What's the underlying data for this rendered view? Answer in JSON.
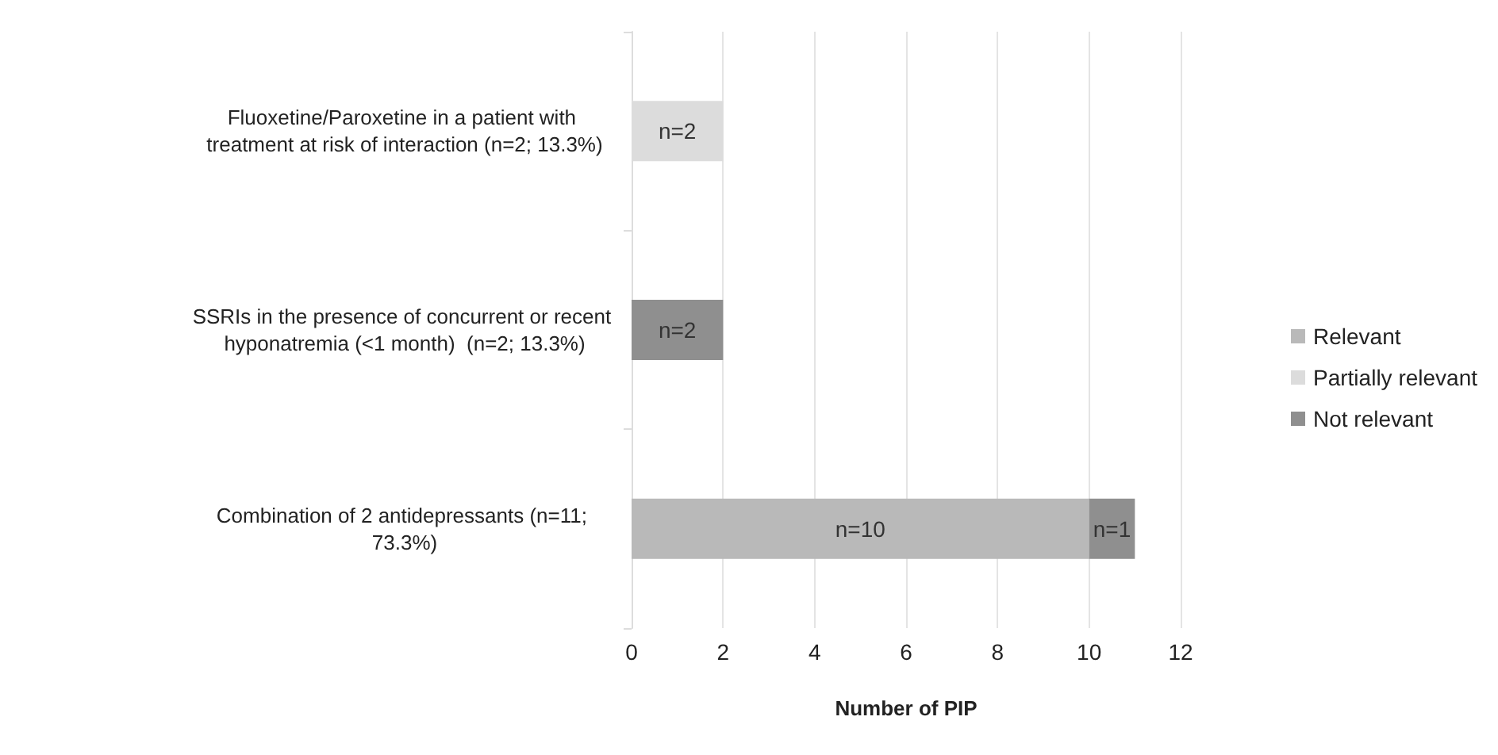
{
  "chart_data": {
    "type": "bar",
    "orientation": "horizontal",
    "stacked": true,
    "categories": [
      "Fluoxetine/Paroxetine in a patient with treatment at risk of interaction (n=2; 13.3%)",
      "SSRIs in the presence of concurrent or recent hyponatremia (<1 month)  (n=2; 13.3%)",
      "Combination of 2 antidepressants (n=11; 73.3%)"
    ],
    "series": [
      {
        "name": "Relevant",
        "color": "#b9b9b9",
        "values": [
          0,
          0,
          10
        ],
        "value_labels": [
          null,
          null,
          "n=10"
        ]
      },
      {
        "name": "Partially relevant",
        "color": "#dcdcdc",
        "values": [
          2,
          0,
          0
        ],
        "value_labels": [
          "n=2",
          null,
          null
        ]
      },
      {
        "name": "Not relevant",
        "color": "#8f8f8f",
        "values": [
          0,
          2,
          1
        ],
        "value_labels": [
          null,
          "n=2",
          "n=1"
        ]
      }
    ],
    "xlabel": "Number of PIP",
    "xlim": [
      0,
      12
    ],
    "xticks": [
      0,
      2,
      4,
      6,
      8,
      10,
      12
    ],
    "grid": "x",
    "legend": "right"
  }
}
